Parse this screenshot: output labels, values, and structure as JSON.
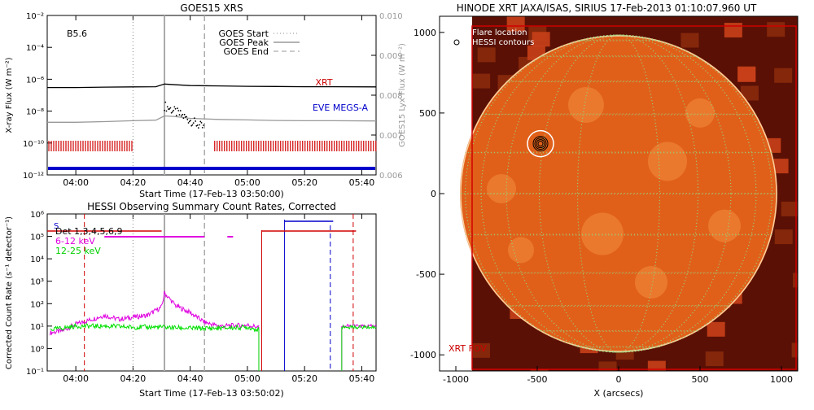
{
  "chart_data": [
    {
      "type": "line",
      "title": "GOES15 XRS",
      "xlabel": "Start Time (17-Feb-13 03:50:00)",
      "ylabel": "X-ray Flux (W m⁻²)",
      "ylabel_right": "GOES15 Lyx Flux (W m⁻²)",
      "xlim": [
        "03:50",
        "05:45"
      ],
      "x_ticks": [
        "04:00",
        "04:20",
        "04:40",
        "05:00",
        "05:20",
        "05:40"
      ],
      "y_ticks": [
        "10⁻²",
        "10⁻⁴",
        "10⁻⁶",
        "10⁻⁸",
        "10⁻¹⁰",
        "10⁻¹²"
      ],
      "yscale": "log",
      "ylim": [
        1e-12,
        0.01
      ],
      "y_right_ticks": [
        "0.010",
        "0.009",
        "0.008",
        "0.007",
        "0.006"
      ],
      "y_right_lim": [
        0.006,
        0.01
      ],
      "class_label": "B5.6",
      "goes_start": "04:20",
      "goes_peak": "04:31",
      "goes_end": "04:45",
      "legend": [
        "GOES Start",
        "GOES Peak",
        "GOES End"
      ],
      "annotations": [
        "XRT",
        "EVE MEGS-A"
      ],
      "series": [
        {
          "name": "",
          "color": "#000000",
          "x": [
            "03:50",
            "04:00",
            "04:10",
            "04:20",
            "04:28",
            "04:31",
            "04:35",
            "04:40",
            "04:50",
            "05:00",
            "05:10",
            "05:20",
            "05:30",
            "05:45"
          ],
          "values": [
            3e-07,
            3e-07,
            3.2e-07,
            3.3e-07,
            3.4e-07,
            5e-07,
            4.5e-07,
            4e-07,
            3.8e-07,
            3.6e-07,
            3.5e-07,
            3.4e-07,
            3.4e-07,
            3.3e-07
          ]
        },
        {
          "name": "",
          "color": "#999999",
          "x": [
            "03:50",
            "04:00",
            "04:10",
            "04:20",
            "04:28",
            "04:31",
            "04:35",
            "04:40",
            "04:50",
            "05:00",
            "05:10",
            "05:20",
            "05:30",
            "05:45"
          ],
          "values": [
            2e-09,
            2e-09,
            2.2e-09,
            2.5e-09,
            2.7e-09,
            5e-09,
            4.5e-09,
            3.5e-09,
            3e-09,
            2.8e-09,
            2.6e-09,
            2.5e-09,
            2.5e-09,
            2.4e-09
          ]
        }
      ],
      "xrt_coverage": [
        [
          "03:50",
          "04:20"
        ],
        [
          "04:48",
          "05:45"
        ]
      ],
      "eve_coverage": [
        [
          "03:50",
          "05:45"
        ]
      ]
    },
    {
      "type": "line",
      "title": "HESSI Observing Summary Count Rates, Corrected",
      "xlabel": "Start Time (17-Feb-13 03:50:02)",
      "ylabel": "Corrected Count Rate (s⁻¹ detector⁻¹)",
      "xlim": [
        "03:50",
        "05:45"
      ],
      "x_ticks": [
        "04:00",
        "04:20",
        "04:40",
        "05:00",
        "05:20",
        "05:40"
      ],
      "y_ticks": [
        "10⁶",
        "10⁵",
        "10⁴",
        "10³",
        "10²",
        "10¹",
        "10⁰",
        "10⁻¹"
      ],
      "yscale": "log",
      "ylim": [
        0.1,
        1000000.0
      ],
      "legend": [
        "Det 1,3,4,5,6,9",
        "6-12 keV",
        "12-25 keV"
      ],
      "s_label": "S",
      "series": [
        {
          "name": "6-12 keV",
          "color": "#e000e0",
          "x": [
            "03:51",
            "03:55",
            "04:00",
            "04:10",
            "04:15",
            "04:20",
            "04:25",
            "04:30",
            "04:31",
            "04:35",
            "04:40",
            "04:45",
            "04:50",
            "05:00",
            "05:04"
          ],
          "values": [
            5,
            6,
            12,
            30,
            20,
            25,
            30,
            70,
            300,
            80,
            40,
            15,
            10,
            11,
            9
          ]
        },
        {
          "name": "12-25 keV",
          "color": "#00e000",
          "x": [
            "03:51",
            "03:55",
            "04:00",
            "04:10",
            "04:20",
            "04:30",
            "04:40",
            "04:50",
            "05:00",
            "05:04"
          ],
          "values": [
            7,
            8,
            10,
            10,
            9,
            9,
            8,
            8,
            9,
            7
          ]
        }
      ],
      "later_segments": {
        "x": [
          "05:33",
          "05:45"
        ],
        "magenta": 10,
        "green": 9
      },
      "red_lines_dashed": [
        "04:03",
        "05:37"
      ],
      "red_lines_solid": [
        "05:05"
      ],
      "blue_lines_solid": [
        "05:13"
      ],
      "blue_lines_dashed": [
        "05:29"
      ]
    },
    {
      "type": "heatmap",
      "title": "HINODE XRT JAXA/ISAS, SIRIUS 17-Feb-2013 01:10:07.960 UT",
      "xlabel": "X (arcsecs)",
      "ylabel": "",
      "xlim": [
        -1100,
        1100
      ],
      "ylim": [
        -1100,
        1100
      ],
      "x_ticks": [
        "-1000",
        "-500",
        "0",
        "500",
        "1000"
      ],
      "y_ticks": [
        "1000",
        "500",
        "0",
        "-500",
        "-1000"
      ],
      "legend": [
        "Flare location",
        "HESSI contours"
      ],
      "fov_label": "XRT FOV",
      "solar_radius": 975,
      "flare_location": [
        -480,
        310
      ],
      "colors": {
        "disk": "#e0601a",
        "dark": "#5a1005",
        "limb": "#f8d0a0",
        "grid": "#9ad07a"
      }
    }
  ]
}
